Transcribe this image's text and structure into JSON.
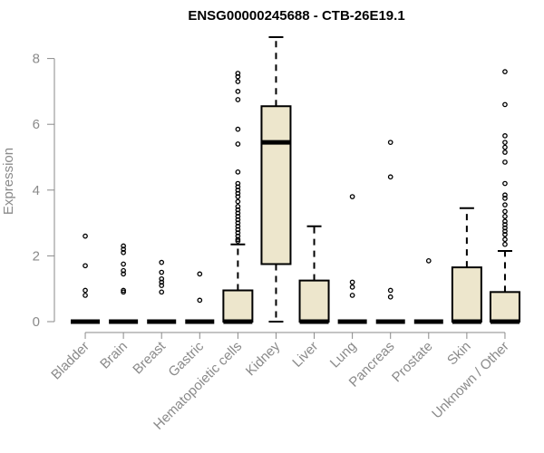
{
  "chart_data": {
    "type": "box",
    "title": "ENSG00000245688 - CTB-26E19.1",
    "ylabel": "Expression",
    "xlabel": "",
    "ylim": [
      0,
      8.7
    ],
    "yticks": [
      0,
      2,
      4,
      6,
      8
    ],
    "grid": false,
    "colors": {
      "box_fill": "#ede6cc",
      "stroke": "#000000",
      "axis": "#8a8a8a"
    },
    "categories": [
      "Bladder",
      "Brain",
      "Breast",
      "Gastric",
      "Hematopoietic cells",
      "Kidney",
      "Liver",
      "Lung",
      "Pancreas",
      "Prostate",
      "Skin",
      "Unknown / Other"
    ],
    "boxes": [
      {
        "name": "Bladder",
        "min": 0,
        "q1": 0,
        "median": 0,
        "q3": 0,
        "max": 0,
        "outliers": [
          2.6,
          1.7,
          0.95,
          0.8
        ]
      },
      {
        "name": "Brain",
        "min": 0,
        "q1": 0,
        "median": 0,
        "q3": 0,
        "max": 0,
        "outliers": [
          2.3,
          2.2,
          2.1,
          1.75,
          1.55,
          1.45,
          0.95,
          0.9
        ]
      },
      {
        "name": "Breast",
        "min": 0,
        "q1": 0,
        "median": 0,
        "q3": 0,
        "max": 0,
        "outliers": [
          1.8,
          1.5,
          1.3,
          1.2,
          1.1,
          0.9
        ]
      },
      {
        "name": "Gastric",
        "min": 0,
        "q1": 0,
        "median": 0,
        "q3": 0,
        "max": 0,
        "outliers": [
          1.45,
          0.65
        ]
      },
      {
        "name": "Hematopoietic cells",
        "min": 0,
        "q1": 0,
        "median": 0,
        "q3": 0.95,
        "max": 2.35,
        "outliers": [
          7.55,
          7.45,
          7.3,
          7.0,
          6.75,
          5.85,
          5.4,
          4.55,
          4.2,
          4.1,
          4.0,
          3.9,
          3.8,
          3.65,
          3.5,
          3.4,
          3.3,
          3.2,
          3.1,
          3.0,
          2.9,
          2.8,
          2.7,
          2.6,
          2.5,
          2.45
        ]
      },
      {
        "name": "Kidney",
        "min": 0,
        "q1": 1.75,
        "median": 5.45,
        "q3": 6.55,
        "max": 8.65,
        "outliers": []
      },
      {
        "name": "Liver",
        "min": 0,
        "q1": 0,
        "median": 0,
        "q3": 1.25,
        "max": 2.9,
        "outliers": []
      },
      {
        "name": "Lung",
        "min": 0,
        "q1": 0,
        "median": 0,
        "q3": 0,
        "max": 0,
        "outliers": [
          3.8,
          1.2,
          1.05,
          0.8
        ]
      },
      {
        "name": "Pancreas",
        "min": 0,
        "q1": 0,
        "median": 0,
        "q3": 0,
        "max": 0,
        "outliers": [
          5.45,
          4.4,
          0.95,
          0.75
        ]
      },
      {
        "name": "Prostate",
        "min": 0,
        "q1": 0,
        "median": 0,
        "q3": 0,
        "max": 0,
        "outliers": [
          1.85
        ]
      },
      {
        "name": "Skin",
        "min": 0,
        "q1": 0,
        "median": 0,
        "q3": 1.65,
        "max": 3.45,
        "outliers": []
      },
      {
        "name": "Unknown / Other",
        "min": 0,
        "q1": 0,
        "median": 0,
        "q3": 0.9,
        "max": 2.15,
        "outliers": [
          7.6,
          6.6,
          5.65,
          5.45,
          5.3,
          5.15,
          4.85,
          4.2,
          3.85,
          3.75,
          3.55,
          3.35,
          3.2,
          3.05,
          2.95,
          2.85,
          2.75,
          2.65,
          2.5,
          2.35
        ]
      }
    ]
  }
}
